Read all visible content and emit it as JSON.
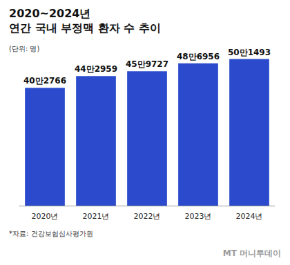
{
  "chart_data": {
    "type": "bar",
    "title": "2020~2024년\n연간 국내 부정맥 환자 수 추이",
    "subtitle": "(단위: 명)",
    "annotations": [
      "*자료: 건강보험심사평가원",
      "MT 머니투데이"
    ],
    "categories": [
      "2020년",
      "2021년",
      "2022년",
      "2023년",
      "2024년"
    ],
    "values": [
      402766,
      442959,
      459727,
      486956,
      501493
    ],
    "value_labels": [
      "40만2766",
      "44만2959",
      "45만9727",
      "48만6956",
      "50만1493"
    ],
    "data_labels": true,
    "color": "#2b4bcc",
    "ylim": [
      0,
      550000
    ],
    "yticks": [
      0,
      550000
    ],
    "grid": false,
    "tick_labels": "x"
  }
}
